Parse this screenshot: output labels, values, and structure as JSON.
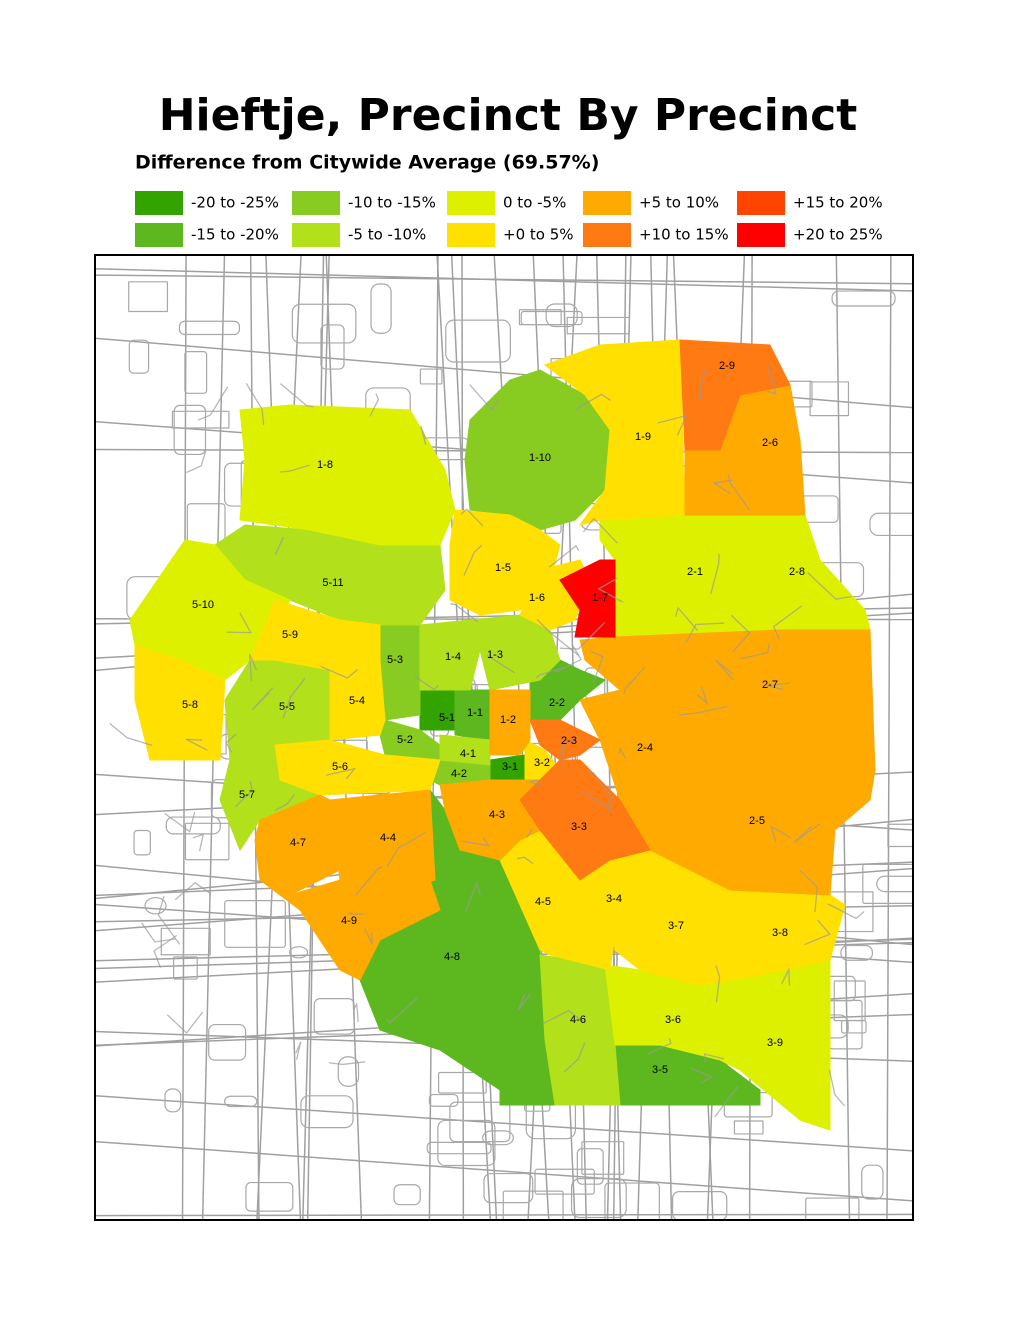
{
  "title": "Hieftje, Precinct By Precinct",
  "subtitle": "Difference from Citywide Average (69.57%)",
  "legend": {
    "items": [
      {
        "label": "-20 to -25%",
        "color": "#33a300",
        "precincts": [
          "5-1",
          "3-1"
        ]
      },
      {
        "label": "-15 to -20%",
        "color": "#5cb81e",
        "precincts": [
          "1-1",
          "2-2",
          "3-5",
          "4-8"
        ]
      },
      {
        "label": "-10 to -15%",
        "color": "#88cc22",
        "precincts": [
          "1-10",
          "4-2",
          "5-2",
          "5-3"
        ]
      },
      {
        "label": "-5 to -10%",
        "color": "#b2e01a",
        "precincts": [
          "1-3",
          "1-4",
          "4-1",
          "4-6",
          "5-5",
          "5-7",
          "5-11"
        ]
      },
      {
        "label": "0 to -5%",
        "color": "#ddf000",
        "precincts": [
          "1-8",
          "2-1",
          "2-8",
          "3-6",
          "3-9",
          "5-10"
        ]
      },
      {
        "label": "+0 to 5%",
        "color": "#ffe000",
        "precincts": [
          "1-5",
          "1-6",
          "1-9",
          "3-2",
          "3-4",
          "3-7",
          "3-8",
          "4-5",
          "5-4",
          "5-6",
          "5-8",
          "5-9"
        ]
      },
      {
        "label": "+5 to 10%",
        "color": "#ffaa00",
        "precincts": [
          "1-2",
          "2-4",
          "2-5",
          "2-6",
          "2-7",
          "4-3",
          "4-4",
          "4-7",
          "4-9"
        ]
      },
      {
        "label": "+10 to 15%",
        "color": "#ff7a12",
        "precincts": [
          "2-3",
          "2-9",
          "3-3"
        ]
      },
      {
        "label": "+15 to 20%",
        "color": "#ff4400",
        "precincts": []
      },
      {
        "label": "+20 to 25%",
        "color": "#ff0000",
        "precincts": [
          "1-7"
        ]
      }
    ]
  }
}
